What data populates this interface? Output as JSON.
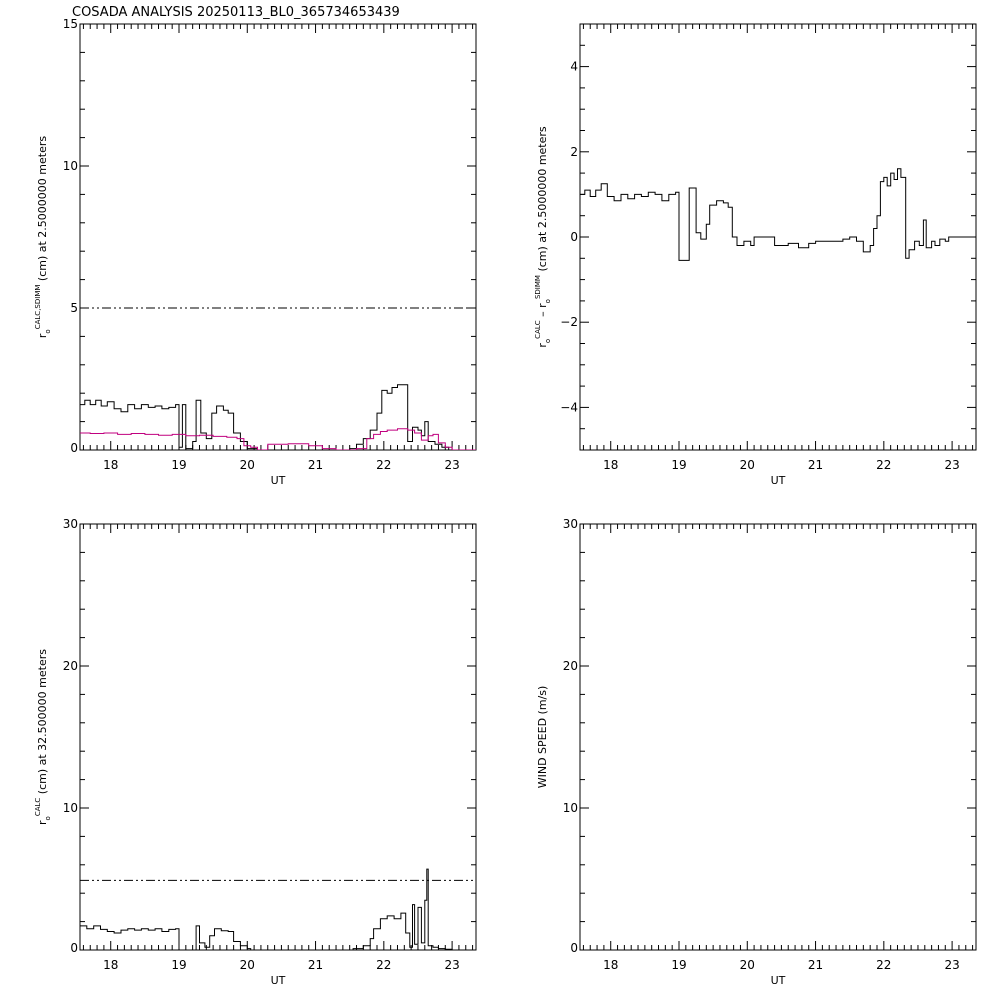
{
  "title": "COSADA ANALYSIS 20250113_BL0_365734653439",
  "chart_data": [
    {
      "id": "top-left",
      "type": "line",
      "xlabel": "UT",
      "ylabel": {
        "prefix": "r",
        "sub": "o",
        "sup": "CALC,SDIMM",
        "suffix": "(cm)  at  2.5000000 meters"
      },
      "xlim": [
        17.55,
        23.35
      ],
      "ylim": [
        0,
        15
      ],
      "xticks": [
        18,
        19,
        20,
        21,
        22,
        23
      ],
      "yticks": [
        0,
        5,
        10,
        15
      ],
      "xtick_labels": [
        "18",
        "19",
        "20",
        "21",
        "22",
        "23"
      ],
      "ytick_labels": [
        "0",
        "5",
        "10",
        "15"
      ],
      "reference_line": 5,
      "series": [
        {
          "color": "#000000",
          "step": true,
          "points": [
            [
              17.55,
              1.6
            ],
            [
              17.62,
              1.75
            ],
            [
              17.7,
              1.6
            ],
            [
              17.78,
              1.75
            ],
            [
              17.86,
              1.55
            ],
            [
              17.95,
              1.7
            ],
            [
              18.05,
              1.45
            ],
            [
              18.15,
              1.35
            ],
            [
              18.25,
              1.6
            ],
            [
              18.35,
              1.45
            ],
            [
              18.45,
              1.6
            ],
            [
              18.55,
              1.5
            ],
            [
              18.65,
              1.55
            ],
            [
              18.75,
              1.45
            ],
            [
              18.85,
              1.5
            ],
            [
              18.95,
              1.6
            ],
            [
              19.0,
              0.1
            ],
            [
              19.05,
              1.6
            ],
            [
              19.1,
              0.05
            ],
            [
              19.2,
              0.3
            ],
            [
              19.25,
              1.75
            ],
            [
              19.32,
              0.6
            ],
            [
              19.4,
              0.4
            ],
            [
              19.48,
              1.3
            ],
            [
              19.55,
              1.55
            ],
            [
              19.65,
              1.4
            ],
            [
              19.72,
              1.3
            ],
            [
              19.8,
              0.6
            ],
            [
              19.9,
              0.3
            ],
            [
              20.0,
              0.05
            ],
            [
              20.15,
              0.0
            ],
            [
              21.4,
              0.0
            ],
            [
              21.5,
              0.05
            ],
            [
              21.6,
              0.2
            ],
            [
              21.7,
              0.4
            ],
            [
              21.8,
              0.7
            ],
            [
              21.9,
              1.3
            ],
            [
              21.97,
              2.1
            ],
            [
              22.05,
              2.0
            ],
            [
              22.12,
              2.2
            ],
            [
              22.2,
              2.3
            ],
            [
              22.35,
              0.3
            ],
            [
              22.42,
              0.8
            ],
            [
              22.5,
              0.7
            ],
            [
              22.55,
              0.5
            ],
            [
              22.6,
              1.0
            ],
            [
              22.65,
              0.3
            ],
            [
              22.75,
              0.2
            ],
            [
              22.85,
              0.1
            ],
            [
              22.95,
              0.0
            ],
            [
              23.35,
              0.0
            ]
          ]
        },
        {
          "color": "#c0007f",
          "step": true,
          "points": [
            [
              17.55,
              0.6
            ],
            [
              17.7,
              0.58
            ],
            [
              17.9,
              0.6
            ],
            [
              18.1,
              0.55
            ],
            [
              18.3,
              0.58
            ],
            [
              18.5,
              0.55
            ],
            [
              18.7,
              0.52
            ],
            [
              18.9,
              0.55
            ],
            [
              19.1,
              0.5
            ],
            [
              19.3,
              0.52
            ],
            [
              19.5,
              0.48
            ],
            [
              19.7,
              0.45
            ],
            [
              19.85,
              0.4
            ],
            [
              19.95,
              0.15
            ],
            [
              20.05,
              0.1
            ],
            [
              20.15,
              0.0
            ],
            [
              20.3,
              0.2
            ],
            [
              20.6,
              0.22
            ],
            [
              20.9,
              0.15
            ],
            [
              21.1,
              0.05
            ],
            [
              21.3,
              0.0
            ],
            [
              21.6,
              0.05
            ],
            [
              21.75,
              0.4
            ],
            [
              21.85,
              0.55
            ],
            [
              21.95,
              0.65
            ],
            [
              22.05,
              0.7
            ],
            [
              22.2,
              0.75
            ],
            [
              22.35,
              0.7
            ],
            [
              22.45,
              0.6
            ],
            [
              22.55,
              0.35
            ],
            [
              22.65,
              0.5
            ],
            [
              22.72,
              0.55
            ],
            [
              22.8,
              0.25
            ],
            [
              22.9,
              0.1
            ],
            [
              23.0,
              0.0
            ],
            [
              23.35,
              0.0
            ]
          ]
        }
      ]
    },
    {
      "id": "top-right",
      "type": "line",
      "xlabel": "UT",
      "ylabel": {
        "prefix": "r",
        "sub": "o",
        "sup": "CALC",
        "middle": "  –  r",
        "sub2": "o",
        "sup2": "SDIMM",
        "suffix": "(cm)  at  2.5000000  meters"
      },
      "xlim": [
        17.55,
        23.35
      ],
      "ylim": [
        -5,
        5
      ],
      "xticks": [
        18,
        19,
        20,
        21,
        22,
        23
      ],
      "yticks": [
        -4,
        -2,
        0,
        2,
        4
      ],
      "xtick_labels": [
        "18",
        "19",
        "20",
        "21",
        "22",
        "23"
      ],
      "ytick_labels": [
        "−4",
        "−2",
        "0",
        "2",
        "4"
      ],
      "series": [
        {
          "color": "#000000",
          "step": true,
          "points": [
            [
              17.55,
              1.0
            ],
            [
              17.62,
              1.1
            ],
            [
              17.7,
              0.95
            ],
            [
              17.78,
              1.1
            ],
            [
              17.86,
              1.25
            ],
            [
              17.95,
              0.95
            ],
            [
              18.05,
              0.85
            ],
            [
              18.15,
              1.0
            ],
            [
              18.25,
              0.9
            ],
            [
              18.35,
              1.0
            ],
            [
              18.45,
              0.95
            ],
            [
              18.55,
              1.05
            ],
            [
              18.65,
              1.0
            ],
            [
              18.75,
              0.85
            ],
            [
              18.85,
              1.0
            ],
            [
              18.95,
              1.05
            ],
            [
              19.0,
              -0.55
            ],
            [
              19.15,
              1.15
            ],
            [
              19.25,
              0.1
            ],
            [
              19.32,
              -0.05
            ],
            [
              19.4,
              0.3
            ],
            [
              19.45,
              0.75
            ],
            [
              19.55,
              0.85
            ],
            [
              19.65,
              0.8
            ],
            [
              19.72,
              0.7
            ],
            [
              19.78,
              0.0
            ],
            [
              19.85,
              -0.2
            ],
            [
              19.95,
              -0.1
            ],
            [
              20.05,
              -0.2
            ],
            [
              20.1,
              0.0
            ],
            [
              20.4,
              -0.2
            ],
            [
              20.6,
              -0.15
            ],
            [
              20.75,
              -0.25
            ],
            [
              20.9,
              -0.15
            ],
            [
              21.0,
              -0.1
            ],
            [
              21.4,
              -0.05
            ],
            [
              21.5,
              0.0
            ],
            [
              21.6,
              -0.1
            ],
            [
              21.7,
              -0.35
            ],
            [
              21.8,
              -0.2
            ],
            [
              21.85,
              0.2
            ],
            [
              21.9,
              0.5
            ],
            [
              21.95,
              1.3
            ],
            [
              22.0,
              1.4
            ],
            [
              22.05,
              1.2
            ],
            [
              22.1,
              1.5
            ],
            [
              22.15,
              1.35
            ],
            [
              22.2,
              1.6
            ],
            [
              22.25,
              1.4
            ],
            [
              22.32,
              -0.5
            ],
            [
              22.37,
              -0.3
            ],
            [
              22.45,
              -0.1
            ],
            [
              22.52,
              -0.2
            ],
            [
              22.58,
              0.4
            ],
            [
              22.62,
              -0.25
            ],
            [
              22.7,
              -0.1
            ],
            [
              22.75,
              -0.2
            ],
            [
              22.82,
              -0.05
            ],
            [
              22.9,
              -0.1
            ],
            [
              22.95,
              0.0
            ],
            [
              23.35,
              0.0
            ]
          ]
        }
      ]
    },
    {
      "id": "bottom-left",
      "type": "line",
      "xlabel": "UT",
      "ylabel": {
        "prefix": "r",
        "sub": "o",
        "sup": "CALC",
        "suffix": "(cm)  at  32.500000  meters"
      },
      "xlim": [
        17.55,
        23.35
      ],
      "ylim": [
        0,
        30
      ],
      "xticks": [
        18,
        19,
        20,
        21,
        22,
        23
      ],
      "yticks": [
        0,
        10,
        20,
        30
      ],
      "xtick_labels": [
        "18",
        "19",
        "20",
        "21",
        "22",
        "23"
      ],
      "ytick_labels": [
        "0",
        "10",
        "20",
        "30"
      ],
      "reference_line": 4.9,
      "series": [
        {
          "color": "#000000",
          "step": true,
          "points": [
            [
              17.55,
              1.7
            ],
            [
              17.65,
              1.5
            ],
            [
              17.75,
              1.7
            ],
            [
              17.85,
              1.45
            ],
            [
              17.95,
              1.3
            ],
            [
              18.05,
              1.2
            ],
            [
              18.15,
              1.4
            ],
            [
              18.25,
              1.5
            ],
            [
              18.35,
              1.4
            ],
            [
              18.45,
              1.5
            ],
            [
              18.55,
              1.4
            ],
            [
              18.65,
              1.5
            ],
            [
              18.75,
              1.3
            ],
            [
              18.85,
              1.45
            ],
            [
              18.95,
              1.5
            ],
            [
              19.0,
              0.0
            ],
            [
              19.2,
              0.0
            ],
            [
              19.25,
              1.7
            ],
            [
              19.3,
              0.5
            ],
            [
              19.38,
              0.2
            ],
            [
              19.45,
              1.0
            ],
            [
              19.52,
              1.5
            ],
            [
              19.62,
              1.35
            ],
            [
              19.72,
              1.3
            ],
            [
              19.8,
              0.6
            ],
            [
              19.9,
              0.3
            ],
            [
              20.0,
              0.1
            ],
            [
              20.05,
              0.0
            ],
            [
              21.4,
              0.0
            ],
            [
              21.55,
              0.1
            ],
            [
              21.7,
              0.3
            ],
            [
              21.8,
              0.8
            ],
            [
              21.85,
              1.5
            ],
            [
              21.95,
              2.2
            ],
            [
              22.05,
              2.4
            ],
            [
              22.15,
              2.2
            ],
            [
              22.25,
              2.6
            ],
            [
              22.32,
              1.2
            ],
            [
              22.38,
              0.2
            ],
            [
              22.42,
              3.2
            ],
            [
              22.45,
              0.4
            ],
            [
              22.5,
              3.0
            ],
            [
              22.55,
              0.5
            ],
            [
              22.6,
              3.5
            ],
            [
              22.63,
              5.7
            ],
            [
              22.65,
              0.3
            ],
            [
              22.72,
              0.2
            ],
            [
              22.8,
              0.1
            ],
            [
              22.9,
              0.05
            ],
            [
              23.0,
              0.0
            ],
            [
              23.35,
              0.0
            ]
          ]
        }
      ]
    },
    {
      "id": "bottom-right",
      "type": "line",
      "xlabel": "UT",
      "ylabel": {
        "prefix": "WIND SPEED (m/s)"
      },
      "xlim": [
        17.55,
        23.35
      ],
      "ylim": [
        0,
        30
      ],
      "xticks": [
        18,
        19,
        20,
        21,
        22,
        23
      ],
      "yticks": [
        0,
        10,
        20,
        30
      ],
      "xtick_labels": [
        "18",
        "19",
        "20",
        "21",
        "22",
        "23"
      ],
      "ytick_labels": [
        "0",
        "10",
        "20",
        "30"
      ],
      "series": []
    }
  ]
}
